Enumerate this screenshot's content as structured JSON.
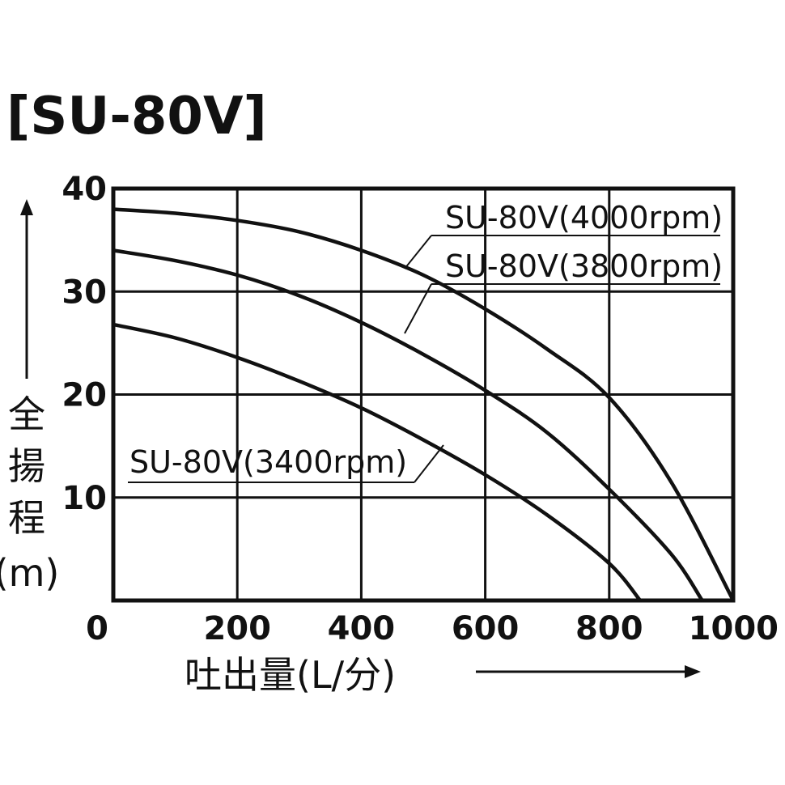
{
  "chart_data": {
    "type": "line",
    "title": "[SU-80V]",
    "xlabel": "吐出量(L/分)",
    "ylabel": [
      "全",
      "揚",
      "程",
      "(m)"
    ],
    "xlim": [
      0,
      1000
    ],
    "ylim": [
      0,
      40
    ],
    "x_ticks": [
      0,
      200,
      400,
      600,
      800,
      1000
    ],
    "x_tick_labels": [
      "0",
      "200",
      "400",
      "600",
      "800",
      "1000"
    ],
    "y_ticks": [
      10,
      20,
      30,
      40
    ],
    "y_tick_labels": [
      "10",
      "20",
      "30",
      "40"
    ],
    "grid": true,
    "series": [
      {
        "name": "SU-80V(4000rpm)",
        "x": [
          0,
          100,
          200,
          300,
          400,
          500,
          600,
          700,
          800,
          900,
          1000
        ],
        "y": [
          38,
          37.6,
          36.9,
          35.8,
          34,
          31.6,
          28.3,
          24.4,
          19.7,
          11.5,
          0
        ]
      },
      {
        "name": "SU-80V(3800rpm)",
        "x": [
          0,
          100,
          200,
          300,
          400,
          500,
          600,
          700,
          800,
          900,
          950
        ],
        "y": [
          34,
          33,
          31.6,
          29.6,
          27,
          23.9,
          20.4,
          16.3,
          10.8,
          4.5,
          0
        ]
      },
      {
        "name": "SU-80V(3400rpm)",
        "x": [
          0,
          100,
          200,
          300,
          400,
          500,
          600,
          700,
          800,
          850
        ],
        "y": [
          26.8,
          25.5,
          23.6,
          21.3,
          18.7,
          15.6,
          12.2,
          8.3,
          3.6,
          0
        ]
      }
    ]
  }
}
